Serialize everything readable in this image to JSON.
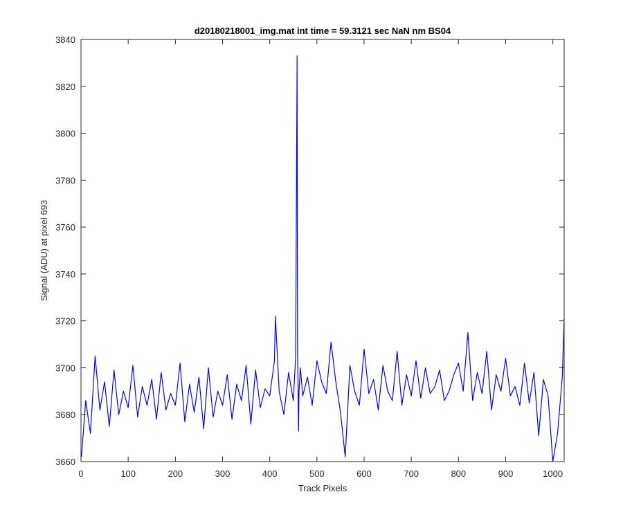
{
  "chart_data": {
    "type": "line",
    "title": "d20180218001_img.mat int time = 59.3121 sec  NaN nm BS04",
    "xlabel": "Track Pixels",
    "ylabel": "Signal (ADU) at pixel 693",
    "xlim": [
      0,
      1024
    ],
    "ylim": [
      3660,
      3840
    ],
    "xticks": [
      0,
      100,
      200,
      300,
      400,
      500,
      600,
      700,
      800,
      900,
      1000
    ],
    "yticks": [
      3660,
      3680,
      3700,
      3720,
      3740,
      3760,
      3780,
      3800,
      3820,
      3840
    ],
    "grid": false,
    "series": [
      {
        "color": "#0000ff",
        "x": [
          1,
          10,
          20,
          30,
          40,
          50,
          60,
          70,
          80,
          90,
          100,
          110,
          120,
          130,
          140,
          150,
          160,
          170,
          180,
          190,
          200,
          210,
          220,
          230,
          240,
          250,
          260,
          270,
          280,
          290,
          300,
          310,
          320,
          330,
          340,
          350,
          360,
          370,
          380,
          390,
          400,
          410,
          412,
          420,
          430,
          440,
          450,
          455,
          458,
          459,
          460,
          461,
          462,
          465,
          470,
          480,
          490,
          500,
          510,
          520,
          530,
          540,
          550,
          560,
          570,
          580,
          590,
          600,
          610,
          620,
          630,
          640,
          650,
          660,
          670,
          680,
          690,
          700,
          710,
          720,
          730,
          740,
          750,
          760,
          770,
          780,
          790,
          800,
          810,
          820,
          830,
          840,
          850,
          860,
          870,
          880,
          890,
          900,
          910,
          920,
          930,
          940,
          950,
          960,
          970,
          980,
          990,
          1000,
          1010,
          1020,
          1024
        ],
        "y": [
          3662,
          3686,
          3672,
          3705,
          3682,
          3694,
          3675,
          3699,
          3680,
          3690,
          3683,
          3701,
          3679,
          3692,
          3684,
          3695,
          3678,
          3698,
          3682,
          3689,
          3684,
          3702,
          3677,
          3693,
          3681,
          3696,
          3674,
          3700,
          3679,
          3690,
          3684,
          3697,
          3678,
          3693,
          3686,
          3701,
          3676,
          3699,
          3683,
          3691,
          3688,
          3703,
          3722,
          3690,
          3680,
          3698,
          3686,
          3705,
          3833,
          3709,
          3692,
          3673,
          3690,
          3700,
          3688,
          3696,
          3684,
          3703,
          3694,
          3689,
          3711,
          3694,
          3681,
          3662,
          3701,
          3690,
          3684,
          3708,
          3689,
          3695,
          3682,
          3701,
          3690,
          3686,
          3707,
          3684,
          3697,
          3688,
          3703,
          3687,
          3700,
          3689,
          3692,
          3699,
          3686,
          3690,
          3697,
          3702,
          3690,
          3715,
          3686,
          3698,
          3689,
          3707,
          3682,
          3697,
          3690,
          3704,
          3688,
          3692,
          3684,
          3702,
          3685,
          3698,
          3671,
          3695,
          3688,
          3660,
          3672,
          3696,
          3721
        ]
      }
    ]
  }
}
